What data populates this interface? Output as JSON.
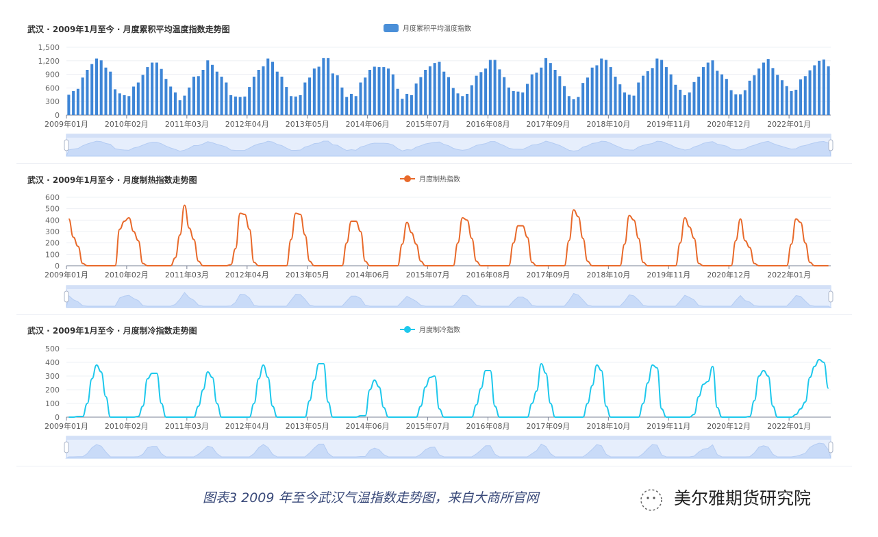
{
  "charts": [
    {
      "title": "武汉 · 2009年1月至今 · 月度累积平均温度指数走势图",
      "legend": "月度累积平均温度指数"
    },
    {
      "title": "武汉 · 2009年1月至今 · 月度制热指数走势图",
      "legend": "月度制热指数"
    },
    {
      "title": "武汉 · 2009年1月至今 · 月度制冷指数走势图",
      "legend": "月度制冷指数"
    }
  ],
  "caption": "图表3    2009 年至今武汉气温指数走势图，来自大商所官网",
  "brand": "美尔雅期货研究院",
  "colors": {
    "bar": "#3d85d6",
    "hdd": "#e8692a",
    "cdd": "#1ec8ec",
    "zoom_fill": "#d6e4fb",
    "zoom_border": "#b9cff2"
  },
  "chart_data": [
    {
      "type": "bar",
      "title": "武汉 · 2009年1月至今 · 月度累积平均温度指数走势图",
      "legend": [
        "月度累积平均温度指数"
      ],
      "xlabel": "",
      "ylabel": "",
      "ylim": [
        0,
        1500
      ],
      "yticks": [
        "0",
        "300",
        "600",
        "900",
        "1,200",
        "1,500"
      ],
      "xticks": [
        "2009年01月",
        "2010年02月",
        "2011年03月",
        "2012年04月",
        "2013年05月",
        "2014年06月",
        "2015年07月",
        "2016年08月",
        "2017年09月",
        "2018年10月",
        "2019年11月",
        "2020年12月",
        "2022年01月"
      ],
      "start": "2009-01",
      "values": [
        450,
        530,
        580,
        830,
        1000,
        1130,
        1250,
        1210,
        1050,
        960,
        570,
        480,
        440,
        420,
        630,
        720,
        890,
        1060,
        1160,
        1160,
        1020,
        800,
        630,
        500,
        330,
        430,
        610,
        850,
        860,
        1000,
        1210,
        1110,
        960,
        850,
        720,
        440,
        410,
        400,
        410,
        620,
        850,
        1000,
        1080,
        1250,
        1180,
        960,
        850,
        620,
        420,
        410,
        440,
        720,
        830,
        1030,
        1070,
        1260,
        1260,
        920,
        880,
        610,
        400,
        470,
        420,
        720,
        830,
        1000,
        1070,
        1060,
        1060,
        1030,
        900,
        580,
        360,
        470,
        440,
        700,
        840,
        1000,
        1080,
        1150,
        1180,
        960,
        840,
        600,
        480,
        420,
        470,
        660,
        870,
        950,
        1030,
        1220,
        1220,
        1010,
        840,
        610,
        530,
        520,
        500,
        690,
        900,
        940,
        1050,
        1260,
        1150,
        1000,
        860,
        640,
        420,
        350,
        400,
        710,
        830,
        1050,
        1100,
        1250,
        1220,
        1060,
        850,
        680,
        500,
        450,
        430,
        720,
        870,
        970,
        1040,
        1250,
        1220,
        1060,
        900,
        670,
        560,
        440,
        500,
        730,
        850,
        1060,
        1160,
        1210,
        980,
        900,
        800,
        550,
        460,
        460,
        550,
        760,
        880,
        1030,
        1160,
        1240,
        1040,
        890,
        770,
        640,
        530,
        560,
        790,
        860,
        990,
        1100,
        1200,
        1230,
        1080
      ]
    },
    {
      "type": "line",
      "title": "武汉 · 2009年1月至今 · 月度制热指数走势图",
      "legend": [
        "月度制热指数"
      ],
      "ylim": [
        0,
        600
      ],
      "yticks": [
        "0",
        "100",
        "200",
        "300",
        "400",
        "500",
        "600"
      ],
      "xticks": [
        "2009年01月",
        "2010年02月",
        "2011年03月",
        "2012年04月",
        "2013年05月",
        "2014年06月",
        "2015年07月",
        "2016年08月",
        "2017年09月",
        "2018年10月",
        "2019年11月",
        "2020年12月",
        "2022年01月"
      ],
      "start": "2009-01",
      "values": [
        410,
        250,
        170,
        20,
        0,
        0,
        0,
        0,
        0,
        0,
        0,
        320,
        390,
        420,
        300,
        220,
        20,
        0,
        0,
        0,
        0,
        0,
        0,
        70,
        270,
        530,
        330,
        230,
        40,
        0,
        0,
        0,
        0,
        0,
        0,
        10,
        150,
        460,
        450,
        320,
        30,
        0,
        0,
        0,
        0,
        0,
        0,
        0,
        230,
        460,
        450,
        270,
        40,
        0,
        0,
        0,
        0,
        0,
        0,
        0,
        200,
        390,
        390,
        300,
        40,
        0,
        0,
        0,
        0,
        0,
        0,
        0,
        190,
        380,
        290,
        190,
        40,
        0,
        0,
        0,
        0,
        0,
        0,
        0,
        200,
        420,
        400,
        240,
        40,
        0,
        0,
        0,
        0,
        0,
        0,
        0,
        200,
        350,
        350,
        250,
        30,
        0,
        0,
        0,
        0,
        0,
        0,
        0,
        220,
        490,
        430,
        240,
        40,
        0,
        0,
        0,
        0,
        0,
        0,
        0,
        190,
        440,
        400,
        240,
        30,
        0,
        0,
        0,
        0,
        0,
        0,
        0,
        200,
        420,
        340,
        240,
        20,
        0,
        0,
        0,
        0,
        0,
        0,
        0,
        220,
        410,
        220,
        160,
        20,
        0,
        0,
        0,
        0,
        0,
        0,
        0,
        190,
        410,
        380,
        200,
        30,
        0,
        0,
        0,
        0
      ]
    },
    {
      "type": "line",
      "title": "武汉 · 2009年1月至今 · 月度制冷指数走势图",
      "legend": [
        "月度制冷指数"
      ],
      "ylim": [
        0,
        500
      ],
      "yticks": [
        "0",
        "100",
        "200",
        "300",
        "400",
        "500"
      ],
      "xticks": [
        "2009年01月",
        "2010年02月",
        "2011年03月",
        "2012年04月",
        "2013年05月",
        "2014年06月",
        "2015年07月",
        "2016年08月",
        "2017年09月",
        "2018年10月",
        "2019年11月",
        "2020年12月",
        "2022年01月"
      ],
      "start": "2009-01",
      "values": [
        0,
        0,
        5,
        5,
        100,
        280,
        380,
        330,
        150,
        0,
        0,
        0,
        0,
        0,
        0,
        5,
        80,
        280,
        320,
        320,
        100,
        0,
        0,
        0,
        0,
        0,
        0,
        0,
        80,
        200,
        330,
        290,
        100,
        0,
        0,
        0,
        0,
        0,
        0,
        0,
        100,
        280,
        380,
        290,
        80,
        0,
        0,
        0,
        0,
        0,
        0,
        0,
        120,
        270,
        390,
        390,
        110,
        0,
        0,
        0,
        0,
        0,
        0,
        10,
        10,
        200,
        270,
        220,
        70,
        0,
        0,
        0,
        0,
        0,
        0,
        0,
        80,
        220,
        290,
        300,
        60,
        0,
        0,
        0,
        0,
        0,
        0,
        0,
        90,
        210,
        340,
        340,
        80,
        0,
        0,
        0,
        0,
        0,
        0,
        0,
        100,
        190,
        390,
        320,
        100,
        0,
        0,
        0,
        0,
        0,
        0,
        0,
        100,
        230,
        380,
        340,
        80,
        0,
        0,
        0,
        0,
        0,
        0,
        0,
        100,
        250,
        380,
        360,
        60,
        0,
        0,
        0,
        0,
        0,
        0,
        20,
        150,
        240,
        260,
        370,
        70,
        0,
        0,
        0,
        0,
        0,
        0,
        5,
        120,
        300,
        340,
        300,
        80,
        0,
        0,
        0,
        0,
        20,
        60,
        110,
        290,
        370,
        420,
        400,
        210
      ]
    }
  ]
}
